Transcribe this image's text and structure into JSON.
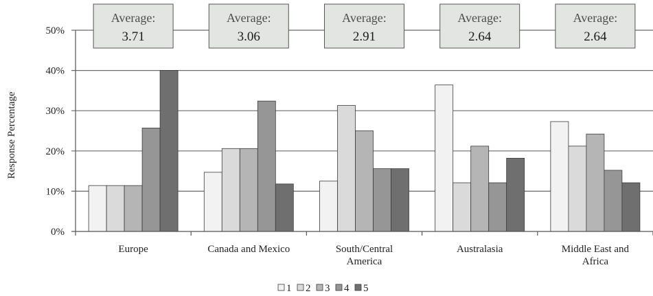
{
  "chart_data": {
    "type": "bar",
    "ylabel": "Response Percentage",
    "xlabel": "",
    "ylim": [
      0,
      50
    ],
    "yticks": [
      "0%",
      "10%",
      "20%",
      "30%",
      "40%",
      "50%"
    ],
    "categories": [
      [
        "Europe"
      ],
      [
        "Canada and Mexico"
      ],
      [
        "South/Central",
        "America"
      ],
      [
        "Australasia"
      ],
      [
        "Middle East and",
        "Africa"
      ]
    ],
    "series": [
      {
        "name": "1",
        "color": "#f2f2f2",
        "values": [
          11.4,
          14.7,
          12.5,
          36.4,
          27.3
        ]
      },
      {
        "name": "2",
        "color": "#dadada",
        "values": [
          11.4,
          20.6,
          31.3,
          12.1,
          21.2
        ]
      },
      {
        "name": "3",
        "color": "#b5b5b5",
        "values": [
          11.4,
          20.6,
          25.0,
          21.2,
          24.2
        ]
      },
      {
        "name": "4",
        "color": "#969696",
        "values": [
          25.7,
          32.4,
          15.6,
          12.1,
          15.2
        ]
      },
      {
        "name": "5",
        "color": "#6f6f6f",
        "values": [
          40.0,
          11.8,
          15.6,
          18.2,
          12.1
        ]
      }
    ],
    "averages": {
      "label": "Average:",
      "values": [
        "3.71",
        "3.06",
        "2.91",
        "2.64",
        "2.64"
      ]
    },
    "legend_position": "bottom",
    "grid": true
  }
}
